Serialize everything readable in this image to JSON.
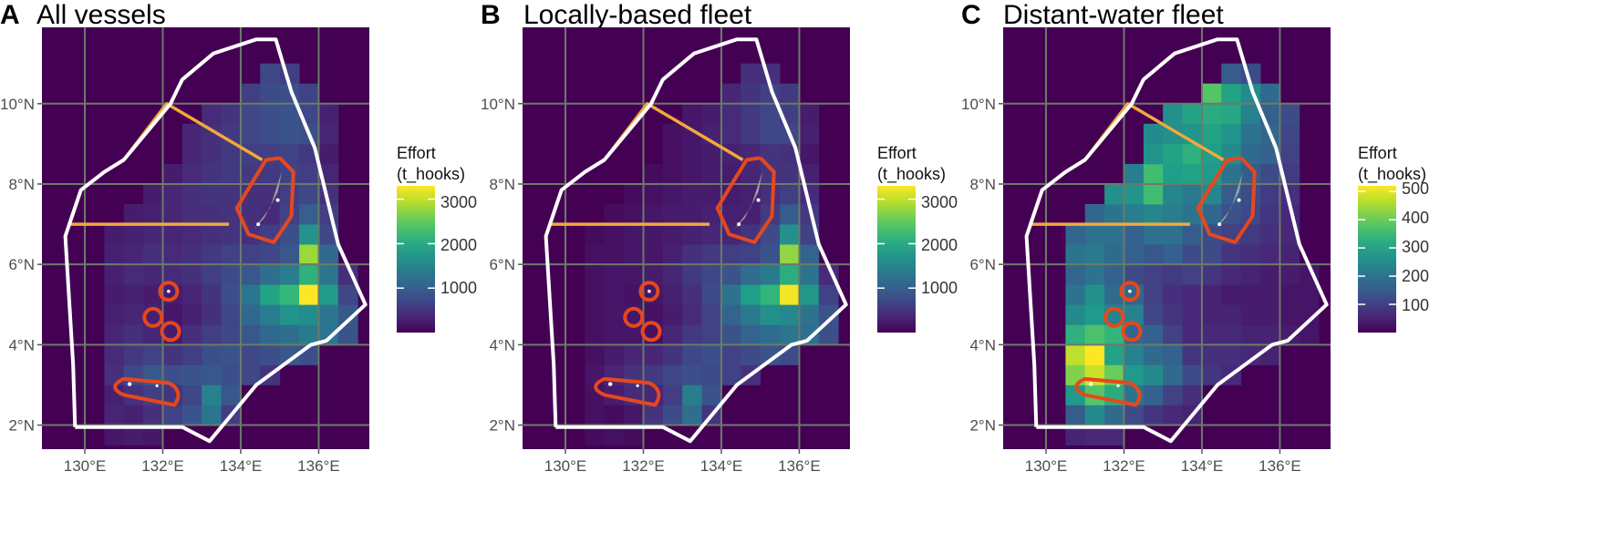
{
  "panels": [
    {
      "letter": "A",
      "title": "All vessels",
      "legend_title_1": "Effort",
      "legend_title_2": "(t_hooks)",
      "scale_max": 3300,
      "legend_ticks": [
        1000,
        2000,
        3000
      ],
      "legend_tick_labels": [
        "1000",
        "2000",
        "3000"
      ]
    },
    {
      "letter": "B",
      "title": "Locally-based fleet",
      "legend_title_1": "Effort",
      "legend_title_2": "(t_hooks)",
      "scale_max": 3300,
      "legend_ticks": [
        1000,
        2000,
        3000
      ],
      "legend_tick_labels": [
        "1000",
        "2000",
        "3000"
      ]
    },
    {
      "letter": "C",
      "title": "Distant-water fleet",
      "legend_title_1": "Effort",
      "legend_title_2": "(t_hooks)",
      "scale_max": 520,
      "legend_ticks": [
        100,
        200,
        300,
        400,
        500
      ],
      "legend_tick_labels": [
        "100",
        "200",
        "300",
        "400",
        "500"
      ]
    }
  ],
  "axes": {
    "x_ticks": [
      130,
      132,
      134,
      136
    ],
    "x_labels": [
      "130°E",
      "132°E",
      "134°E",
      "136°E"
    ],
    "y_ticks": [
      2,
      4,
      6,
      8,
      10
    ],
    "y_labels": [
      "2°N",
      "4°N",
      "6°N",
      "8°N",
      "10°N"
    ],
    "lon_range": [
      128.9,
      137.3
    ],
    "lat_range": [
      1.4,
      11.9
    ]
  },
  "colors": {
    "background": "#440154",
    "eez_boundary": "#ffffff",
    "zone_lines": "#f2a93b",
    "protected_areas": "#e8471c",
    "land": "#a0a0a0",
    "grid": "#6b7a6a"
  },
  "chart_data": {
    "type": "heatmap",
    "cell_size_deg": 0.5,
    "lon_start": 129.5,
    "lat_start": 1.5,
    "series": [
      {
        "name": "All vessels",
        "rows": [
          [
            0,
            0,
            200,
            250,
            200,
            0,
            0,
            0,
            0,
            0,
            0,
            0,
            0,
            0,
            0,
            0
          ],
          [
            0,
            0,
            350,
            300,
            450,
            650,
            850,
            1300,
            600,
            0,
            0,
            0,
            0,
            0,
            0,
            0
          ],
          [
            0,
            0,
            300,
            450,
            600,
            500,
            700,
            1450,
            900,
            0,
            0,
            0,
            0,
            0,
            0,
            0
          ],
          [
            0,
            0,
            450,
            700,
            900,
            800,
            850,
            900,
            800,
            700,
            500,
            0,
            0,
            0,
            0,
            0
          ],
          [
            0,
            0,
            400,
            550,
            650,
            500,
            600,
            800,
            850,
            700,
            800,
            900,
            800,
            0,
            0,
            0
          ],
          [
            0,
            0,
            350,
            450,
            350,
            250,
            450,
            600,
            700,
            900,
            1100,
            1200,
            1350,
            1250,
            850,
            0
          ],
          [
            0,
            0,
            300,
            350,
            300,
            200,
            300,
            450,
            700,
            1100,
            1400,
            1700,
            1600,
            1300,
            900,
            0
          ],
          [
            0,
            0,
            250,
            300,
            250,
            250,
            350,
            500,
            800,
            1300,
            1900,
            2200,
            3300,
            1800,
            700,
            0
          ],
          [
            0,
            0,
            300,
            400,
            350,
            400,
            450,
            600,
            750,
            900,
            1200,
            1400,
            2100,
            1300,
            450,
            0
          ],
          [
            0,
            0,
            300,
            350,
            450,
            400,
            450,
            550,
            650,
            650,
            700,
            900,
            2800,
            1100,
            0,
            0
          ],
          [
            0,
            0,
            250,
            300,
            350,
            350,
            400,
            450,
            500,
            450,
            600,
            800,
            1700,
            700,
            0,
            0
          ],
          [
            0,
            0,
            0,
            250,
            300,
            350,
            450,
            450,
            500,
            450,
            400,
            650,
            1000,
            600,
            0,
            0
          ],
          [
            0,
            0,
            0,
            0,
            250,
            350,
            450,
            500,
            500,
            450,
            450,
            600,
            700,
            450,
            0,
            0
          ],
          [
            0,
            0,
            0,
            0,
            0,
            250,
            400,
            500,
            550,
            550,
            550,
            650,
            600,
            350,
            0,
            0
          ],
          [
            0,
            0,
            0,
            0,
            0,
            0,
            350,
            450,
            550,
            600,
            600,
            650,
            550,
            250,
            0,
            0
          ],
          [
            0,
            0,
            0,
            0,
            0,
            0,
            350,
            450,
            550,
            700,
            800,
            850,
            800,
            350,
            0,
            0
          ],
          [
            0,
            0,
            0,
            0,
            0,
            0,
            0,
            400,
            500,
            700,
            800,
            850,
            700,
            300,
            0,
            0
          ],
          [
            0,
            0,
            0,
            0,
            0,
            0,
            0,
            0,
            0,
            600,
            750,
            800,
            650,
            0,
            0,
            0
          ],
          [
            0,
            0,
            0,
            0,
            0,
            0,
            0,
            0,
            0,
            0,
            700,
            600,
            0,
            0,
            0,
            0
          ]
        ]
      },
      {
        "name": "Locally-based fleet",
        "rows": [
          [
            0,
            0,
            100,
            150,
            100,
            0,
            0,
            0,
            0,
            0,
            0,
            0,
            0,
            0,
            0,
            0
          ],
          [
            0,
            0,
            150,
            100,
            200,
            500,
            750,
            1200,
            500,
            0,
            0,
            0,
            0,
            0,
            0,
            0
          ],
          [
            0,
            0,
            150,
            250,
            400,
            350,
            600,
            1400,
            850,
            0,
            0,
            0,
            0,
            0,
            0,
            0
          ],
          [
            0,
            0,
            200,
            350,
            500,
            550,
            700,
            800,
            750,
            650,
            450,
            0,
            0,
            0,
            0,
            0
          ],
          [
            0,
            0,
            150,
            250,
            350,
            350,
            500,
            700,
            800,
            650,
            750,
            850,
            750,
            0,
            0,
            0
          ],
          [
            0,
            0,
            150,
            200,
            200,
            150,
            350,
            550,
            650,
            850,
            1050,
            1150,
            1300,
            1200,
            800,
            0
          ],
          [
            0,
            0,
            150,
            200,
            200,
            150,
            250,
            400,
            650,
            1050,
            1350,
            1650,
            1550,
            1250,
            850,
            0
          ],
          [
            0,
            0,
            150,
            200,
            150,
            200,
            300,
            450,
            750,
            1250,
            1850,
            2150,
            3250,
            1750,
            650,
            0
          ],
          [
            0,
            0,
            150,
            200,
            200,
            250,
            350,
            550,
            700,
            850,
            1150,
            1350,
            2050,
            1250,
            400,
            0
          ],
          [
            0,
            0,
            150,
            150,
            200,
            200,
            300,
            450,
            550,
            600,
            650,
            850,
            2750,
            1050,
            0,
            0
          ],
          [
            0,
            0,
            100,
            150,
            200,
            200,
            250,
            300,
            350,
            350,
            500,
            750,
            1650,
            650,
            0,
            0
          ],
          [
            0,
            0,
            0,
            100,
            150,
            200,
            250,
            250,
            300,
            300,
            300,
            550,
            950,
            550,
            0,
            0
          ],
          [
            0,
            0,
            0,
            0,
            100,
            150,
            200,
            250,
            250,
            250,
            300,
            450,
            600,
            400,
            0,
            0
          ],
          [
            0,
            0,
            0,
            0,
            0,
            100,
            150,
            200,
            250,
            250,
            350,
            500,
            500,
            300,
            0,
            0
          ],
          [
            0,
            0,
            0,
            0,
            0,
            0,
            150,
            200,
            250,
            300,
            350,
            500,
            450,
            200,
            0,
            0
          ],
          [
            0,
            0,
            0,
            0,
            0,
            0,
            150,
            200,
            300,
            400,
            550,
            700,
            700,
            300,
            0,
            0
          ],
          [
            0,
            0,
            0,
            0,
            0,
            0,
            0,
            200,
            250,
            400,
            550,
            700,
            600,
            250,
            0,
            0
          ],
          [
            0,
            0,
            0,
            0,
            0,
            0,
            0,
            0,
            0,
            350,
            500,
            650,
            550,
            0,
            0,
            0
          ],
          [
            0,
            0,
            0,
            0,
            0,
            0,
            0,
            0,
            0,
            0,
            450,
            450,
            0,
            0,
            0,
            0
          ]
        ]
      },
      {
        "name": "Distant-water fleet",
        "rows": [
          [
            0,
            0,
            50,
            60,
            60,
            0,
            0,
            0,
            0,
            0,
            0,
            0,
            0,
            0,
            0,
            0
          ],
          [
            0,
            0,
            150,
            250,
            180,
            120,
            80,
            60,
            50,
            0,
            0,
            0,
            0,
            0,
            0,
            0
          ],
          [
            0,
            0,
            280,
            380,
            320,
            200,
            160,
            100,
            70,
            0,
            0,
            0,
            0,
            0,
            0,
            0
          ],
          [
            0,
            0,
            420,
            480,
            400,
            280,
            250,
            180,
            120,
            80,
            60,
            0,
            0,
            0,
            0,
            0
          ],
          [
            0,
            0,
            470,
            520,
            300,
            230,
            180,
            160,
            80,
            70,
            70,
            60,
            50,
            0,
            0,
            0
          ],
          [
            0,
            0,
            330,
            370,
            340,
            170,
            160,
            100,
            60,
            60,
            60,
            50,
            50,
            40,
            30,
            0
          ],
          [
            0,
            0,
            250,
            280,
            230,
            230,
            110,
            80,
            60,
            50,
            50,
            40,
            40,
            30,
            30,
            0
          ],
          [
            0,
            0,
            200,
            260,
            180,
            170,
            100,
            70,
            60,
            50,
            40,
            40,
            40,
            30,
            30,
            0
          ],
          [
            0,
            0,
            170,
            200,
            160,
            120,
            100,
            90,
            100,
            80,
            60,
            50,
            40,
            40,
            30,
            0
          ],
          [
            0,
            0,
            200,
            210,
            180,
            160,
            140,
            160,
            120,
            120,
            80,
            70,
            60,
            50,
            0,
            0
          ],
          [
            0,
            0,
            170,
            190,
            190,
            160,
            190,
            190,
            150,
            120,
            100,
            90,
            70,
            60,
            0,
            0
          ],
          [
            0,
            0,
            0,
            170,
            200,
            220,
            240,
            220,
            200,
            170,
            130,
            110,
            80,
            60,
            0,
            0
          ],
          [
            0,
            0,
            0,
            0,
            260,
            270,
            360,
            240,
            210,
            240,
            150,
            120,
            90,
            70,
            0,
            0
          ],
          [
            0,
            0,
            0,
            0,
            0,
            220,
            360,
            290,
            300,
            280,
            200,
            150,
            120,
            90,
            0,
            0
          ],
          [
            0,
            0,
            0,
            0,
            0,
            0,
            270,
            300,
            330,
            290,
            250,
            180,
            160,
            100,
            0,
            0
          ],
          [
            0,
            0,
            0,
            0,
            0,
            0,
            250,
            260,
            270,
            300,
            270,
            200,
            170,
            110,
            0,
            0
          ],
          [
            0,
            0,
            0,
            0,
            0,
            0,
            0,
            260,
            300,
            320,
            310,
            230,
            160,
            120,
            0,
            0
          ],
          [
            0,
            0,
            0,
            0,
            0,
            0,
            0,
            0,
            0,
            380,
            300,
            250,
            180,
            0,
            0,
            0
          ],
          [
            0,
            0,
            0,
            0,
            0,
            0,
            0,
            0,
            0,
            0,
            150,
            120,
            0,
            0,
            0,
            0
          ]
        ]
      }
    ],
    "eez_boundary_lonlat": [
      [
        129.75,
        1.95
      ],
      [
        129.7,
        3.5
      ],
      [
        129.5,
        6.7
      ],
      [
        129.9,
        7.85
      ],
      [
        130.5,
        8.3
      ],
      [
        131.0,
        8.6
      ],
      [
        132.2,
        10.0
      ],
      [
        132.5,
        10.6
      ],
      [
        133.3,
        11.25
      ],
      [
        134.4,
        11.6
      ],
      [
        134.9,
        11.6
      ],
      [
        135.3,
        10.3
      ],
      [
        135.9,
        8.9
      ],
      [
        136.5,
        6.5
      ],
      [
        137.2,
        5.0
      ],
      [
        136.2,
        4.1
      ],
      [
        135.8,
        4.0
      ],
      [
        134.4,
        3.0
      ],
      [
        133.2,
        1.6
      ],
      [
        132.5,
        1.95
      ],
      [
        131.0,
        1.95
      ],
      [
        129.75,
        1.95
      ]
    ],
    "zone_lines_lonlat": [
      [
        [
          134.55,
          8.6
        ],
        [
          132.1,
          10.0
        ],
        [
          131.0,
          8.6
        ],
        [
          130.5,
          8.3
        ],
        [
          129.9,
          7.85
        ],
        [
          129.6,
          7.0
        ]
      ],
      [
        [
          129.6,
          7.0
        ],
        [
          133.7,
          7.0
        ]
      ]
    ]
  }
}
